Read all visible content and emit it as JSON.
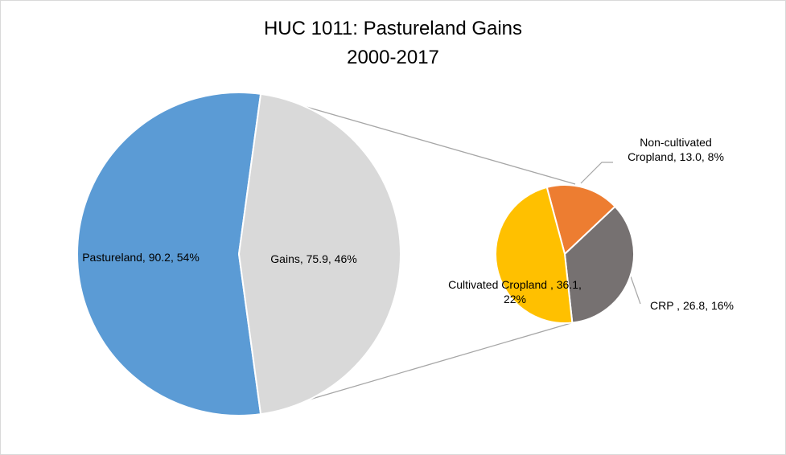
{
  "chart_data": {
    "type": "pie-of-pie",
    "title": "HUC 1011: Pastureland Gains",
    "subtitle": "2000-2017",
    "values": [
      90.2,
      75.9
    ],
    "value_labels": [
      "Pastureland, 90.2, 54%",
      "Gains, 75.9, 46%"
    ],
    "colors": [
      "#5b9bd5",
      "#d9d9d9"
    ],
    "breakdown": {
      "values": [
        13.0,
        26.8,
        36.1
      ],
      "value_labels": [
        "Non-cultivated Cropland, 13.0, 8%",
        "CRP , 26.8, 16%",
        "Cultivated Cropland , 36.1, 22%"
      ],
      "colors": [
        "#ed7d31",
        "#767171",
        "#ffc000"
      ]
    }
  }
}
